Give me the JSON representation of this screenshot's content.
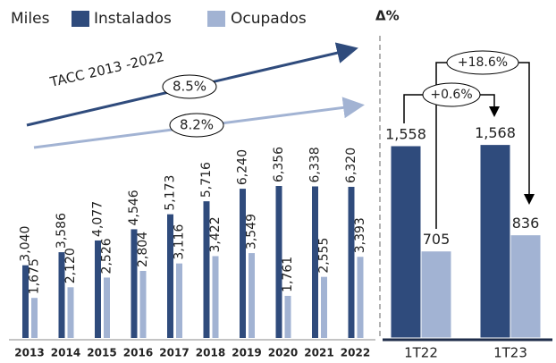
{
  "chart_data": [
    {
      "type": "bar",
      "unit_label": "Miles",
      "categories": [
        "2013",
        "2014",
        "2015",
        "2016",
        "2017",
        "2018",
        "2019",
        "2020",
        "2021",
        "2022"
      ],
      "series": [
        {
          "name": "Instalados",
          "color": "#2f4b7c",
          "values": [
            3040,
            3586,
            4077,
            4546,
            5173,
            5716,
            6240,
            6356,
            6338,
            6320
          ],
          "value_labels": [
            "3,040",
            "3,586",
            "4,077",
            "4,546",
            "5,173",
            "5,716",
            "6,240",
            "6,356",
            "6,338",
            "6,320"
          ]
        },
        {
          "name": "Ocupados",
          "color": "#a2b3d3",
          "values": [
            1675,
            2120,
            2526,
            2804,
            3116,
            3422,
            3549,
            1761,
            2555,
            3393
          ],
          "value_labels": [
            "1,675",
            "2,120",
            "2,526",
            "2,804",
            "3,116",
            "3,422",
            "3,549",
            "1,761",
            "2,555",
            "3,393"
          ]
        }
      ],
      "annotations": [
        "TACC 2013 -2022",
        "8.5%",
        "8.2%"
      ]
    },
    {
      "type": "bar",
      "title": "Δ%",
      "categories": [
        "1T22",
        "1T23"
      ],
      "series": [
        {
          "color": "#2f4b7c",
          "values": [
            1558,
            1568
          ],
          "value_labels": [
            "1,558",
            "1,568"
          ]
        },
        {
          "color": "#a2b3d3",
          "values": [
            705,
            836
          ],
          "value_labels": [
            "705",
            "836"
          ]
        }
      ],
      "annotations": [
        "+0.6%",
        "+18.6%"
      ]
    }
  ]
}
